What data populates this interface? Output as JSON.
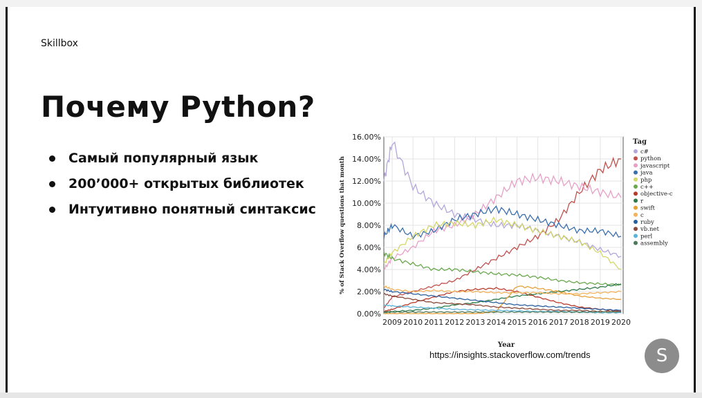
{
  "slide": {
    "brand": "Skillbox",
    "title": "Почему Python?",
    "bullets": [
      "Самый популярный язык",
      "200’000+ открытых библиотек",
      "Интуитивно понятный синтаксис"
    ],
    "source": "https://insights.stackoverflow.com/trends",
    "avatar_letter": "S"
  },
  "chart_data": {
    "type": "line",
    "xlabel": "Year",
    "ylabel": "% of Stack Overflow questions that month",
    "legend_title": "Tag",
    "legend_position": "right",
    "x": [
      2008.6,
      2009,
      2010,
      2011,
      2012,
      2013,
      2014,
      2015,
      2016,
      2017,
      2018,
      2019,
      2020
    ],
    "xlim": [
      2008.6,
      2020.1
    ],
    "ylim": [
      0,
      16
    ],
    "x_ticks": [
      "2009",
      "2010",
      "2011",
      "2012",
      "2013",
      "2014",
      "2015",
      "2016",
      "2017",
      "2018",
      "2019",
      "2020"
    ],
    "y_ticks": [
      "0.00%",
      "2.00%",
      "4.00%",
      "6.00%",
      "8.00%",
      "10.00%",
      "12.00%",
      "14.00%",
      "16.00%"
    ],
    "grid": true,
    "series": [
      {
        "name": "c#",
        "color": "#b3a6d9",
        "values": [
          12.0,
          15.5,
          11.5,
          10.0,
          9.0,
          8.5,
          8.0,
          8.0,
          7.5,
          7.0,
          6.5,
          5.8,
          5.2
        ]
      },
      {
        "name": "python",
        "color": "#c0504d",
        "values": [
          0.5,
          1.5,
          2.0,
          2.5,
          3.0,
          4.0,
          5.0,
          6.0,
          7.0,
          8.5,
          11.0,
          13.0,
          14.0
        ]
      },
      {
        "name": "javascript",
        "color": "#e6a0c8",
        "values": [
          4.0,
          5.0,
          6.0,
          7.5,
          8.0,
          9.0,
          10.5,
          12.0,
          12.3,
          12.0,
          11.5,
          11.0,
          10.5
        ]
      },
      {
        "name": "java",
        "color": "#3a6fae",
        "values": [
          7.0,
          8.0,
          7.0,
          7.5,
          8.5,
          9.0,
          9.5,
          9.0,
          8.5,
          8.0,
          7.5,
          7.5,
          7.0
        ]
      },
      {
        "name": "php",
        "color": "#d4d76a",
        "values": [
          4.5,
          5.5,
          7.0,
          8.0,
          8.2,
          8.0,
          8.5,
          8.0,
          7.5,
          7.0,
          6.5,
          5.5,
          4.0
        ]
      },
      {
        "name": "c++",
        "color": "#6aa84f",
        "values": [
          5.5,
          5.0,
          4.5,
          4.0,
          4.0,
          3.8,
          3.6,
          3.5,
          3.3,
          3.0,
          2.8,
          2.7,
          2.6
        ]
      },
      {
        "name": "objective-c",
        "color": "#b83a2a",
        "values": [
          0.2,
          0.4,
          1.0,
          1.5,
          2.0,
          2.2,
          2.3,
          2.0,
          1.5,
          1.0,
          0.6,
          0.4,
          0.2
        ]
      },
      {
        "name": "r",
        "color": "#2f7a4a",
        "values": [
          0.1,
          0.2,
          0.3,
          0.5,
          0.8,
          1.0,
          1.3,
          1.6,
          1.8,
          2.0,
          2.2,
          2.4,
          2.7
        ]
      },
      {
        "name": "swift",
        "color": "#e8a03a",
        "values": [
          0,
          0,
          0,
          0,
          0,
          0,
          0.2,
          2.5,
          2.3,
          2.0,
          1.6,
          1.4,
          1.3
        ]
      },
      {
        "name": "c",
        "color": "#f2b35b",
        "values": [
          2.5,
          2.2,
          2.0,
          2.1,
          2.0,
          2.0,
          1.9,
          1.9,
          1.9,
          1.8,
          1.8,
          1.9,
          2.0
        ]
      },
      {
        "name": "ruby",
        "color": "#2a5f9e",
        "values": [
          2.2,
          2.0,
          1.8,
          1.6,
          1.4,
          1.2,
          1.0,
          0.8,
          0.7,
          0.6,
          0.5,
          0.4,
          0.3
        ]
      },
      {
        "name": "vb.net",
        "color": "#8b4a3c",
        "values": [
          1.8,
          1.6,
          1.3,
          1.0,
          0.9,
          0.8,
          0.6,
          0.5,
          0.4,
          0.3,
          0.3,
          0.2,
          0.2
        ]
      },
      {
        "name": "perl",
        "color": "#5bb3d9",
        "values": [
          0.8,
          0.7,
          0.6,
          0.5,
          0.4,
          0.35,
          0.3,
          0.25,
          0.2,
          0.2,
          0.15,
          0.1,
          0.1
        ]
      },
      {
        "name": "assembly",
        "color": "#4d7a5a",
        "values": [
          0.15,
          0.15,
          0.15,
          0.15,
          0.15,
          0.15,
          0.15,
          0.15,
          0.15,
          0.15,
          0.15,
          0.15,
          0.15
        ]
      }
    ]
  }
}
